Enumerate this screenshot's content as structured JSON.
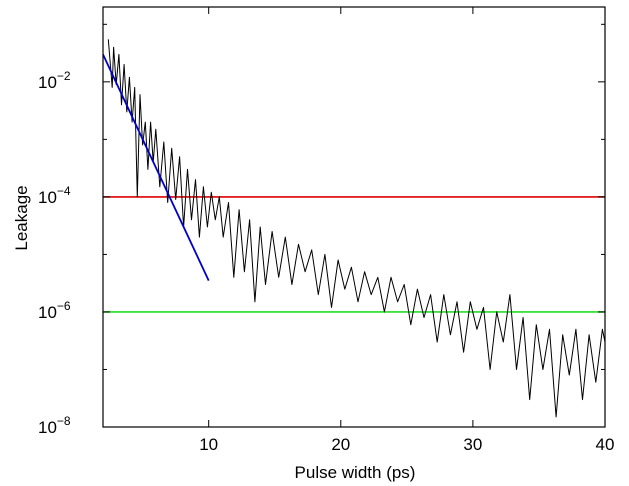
{
  "chart_data": {
    "type": "line",
    "title": "",
    "xlabel": "Pulse width (ps)",
    "ylabel": "Leakage",
    "xlim": [
      2,
      40
    ],
    "ylim": [
      1e-08,
      0.2
    ],
    "yscale": "log",
    "grid": false,
    "legend": "none",
    "x_ticks": [
      10,
      20,
      30,
      40
    ],
    "y_ticks": [
      {
        "value": 1e-08,
        "base": "10",
        "exp": "−8"
      },
      {
        "value": 1e-06,
        "base": "10",
        "exp": "−6"
      },
      {
        "value": 0.0001,
        "base": "10",
        "exp": "−4"
      },
      {
        "value": 0.01,
        "base": "10",
        "exp": "−2"
      }
    ],
    "series": [
      {
        "role": "leakage",
        "color": "#000000",
        "x": [
          2.4,
          2.7,
          2.8,
          3.0,
          3.2,
          3.4,
          3.6,
          3.8,
          4.0,
          4.2,
          4.4,
          4.6,
          4.8,
          5.0,
          5.2,
          5.4,
          5.6,
          5.8,
          6.0,
          6.3,
          6.6,
          6.9,
          7.2,
          7.5,
          7.8,
          8.1,
          8.4,
          8.7,
          9.0,
          9.3,
          9.6,
          9.9,
          10.2,
          10.5,
          10.8,
          11.1,
          11.5,
          11.9,
          12.3,
          12.7,
          13.1,
          13.5,
          13.9,
          14.3,
          14.8,
          15.3,
          15.8,
          16.3,
          16.8,
          17.3,
          17.8,
          18.3,
          18.8,
          19.3,
          19.8,
          20.3,
          20.8,
          21.3,
          21.8,
          22.3,
          22.8,
          23.3,
          23.8,
          24.3,
          24.8,
          25.3,
          25.8,
          26.3,
          26.8,
          27.3,
          27.8,
          28.3,
          28.8,
          29.3,
          29.8,
          30.3,
          30.8,
          31.3,
          31.8,
          32.3,
          32.8,
          33.3,
          33.8,
          34.3,
          34.8,
          35.3,
          35.8,
          36.3,
          36.8,
          37.3,
          37.8,
          38.3,
          38.8,
          39.3,
          39.8,
          40.0
        ],
        "y": [
          0.055,
          0.008,
          0.04,
          0.009,
          0.03,
          0.004,
          0.02,
          0.003,
          0.012,
          0.002,
          0.008,
          0.0001,
          0.006,
          0.0008,
          0.002,
          0.0003,
          0.002,
          0.0004,
          0.0015,
          0.00015,
          0.0009,
          8e-05,
          0.0007,
          9e-05,
          0.0005,
          3e-05,
          0.0003,
          4e-05,
          0.0002,
          2e-05,
          0.00015,
          3e-05,
          0.00012,
          4e-05,
          0.0001,
          2e-05,
          8e-05,
          4e-06,
          6e-05,
          5e-06,
          4e-05,
          1.5e-06,
          3e-05,
          3e-06,
          2.5e-05,
          4e-06,
          2e-05,
          3e-06,
          1.5e-05,
          5e-06,
          1.2e-05,
          2e-06,
          1e-05,
          1.2e-06,
          8e-06,
          2.5e-06,
          6e-06,
          1.5e-06,
          5e-06,
          2e-06,
          4e-06,
          1e-06,
          4e-06,
          1.5e-06,
          3e-06,
          6e-07,
          2.5e-06,
          8e-07,
          2e-06,
          3e-07,
          2e-06,
          4e-07,
          1.5e-06,
          2e-07,
          1.5e-06,
          5e-07,
          1.2e-06,
          1e-07,
          1e-06,
          3e-07,
          2e-06,
          1e-07,
          8e-07,
          3e-08,
          6e-07,
          1e-07,
          5e-07,
          1.5e-08,
          4e-07,
          8e-08,
          5e-07,
          3e-08,
          4e-07,
          6e-08,
          5e-07,
          3e-07
        ]
      },
      {
        "role": "fit",
        "color": "#0000cc",
        "x": [
          2,
          10
        ],
        "y": [
          0.03,
          3.5e-06
        ]
      }
    ],
    "reference_lines": [
      {
        "y": 0.0001,
        "color": "#dd0000"
      },
      {
        "y": 1e-06,
        "color": "#22dd22"
      }
    ]
  }
}
